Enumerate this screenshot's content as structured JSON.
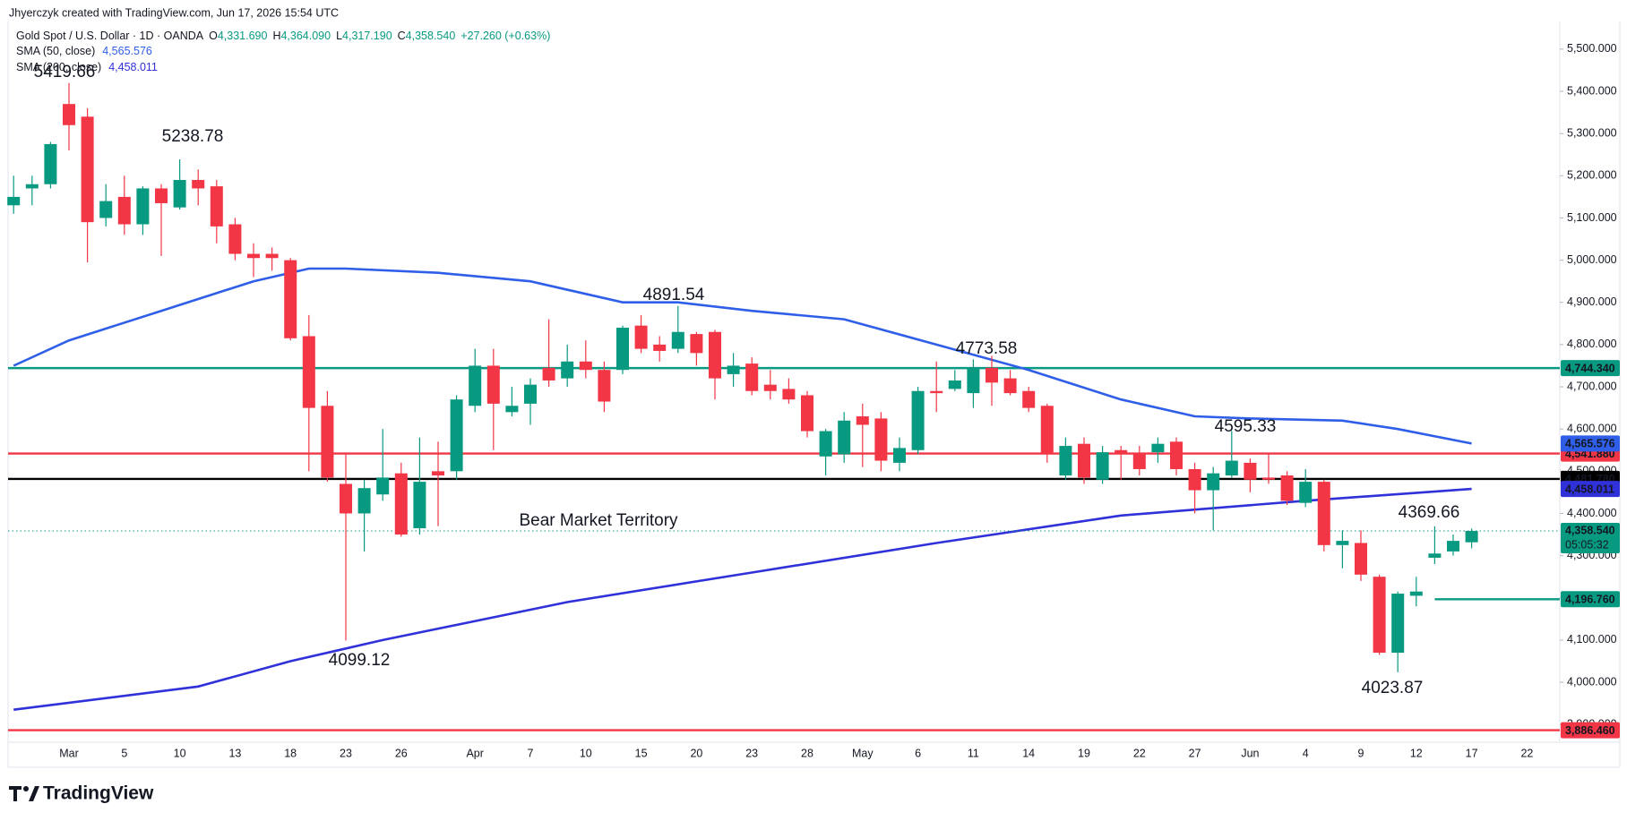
{
  "header": {
    "author": "Jhyerczyk created with TradingView.com, Jun 17, 2026 15:54 UTC",
    "symbol": "Gold Spot / U.S. Dollar · 1D · OANDA",
    "ohlc": [
      {
        "key": "O",
        "value": "4,331.690"
      },
      {
        "key": "H",
        "value": "4,364.090"
      },
      {
        "key": "L",
        "value": "4,317.190"
      },
      {
        "key": "C",
        "value": "4,358.540"
      }
    ],
    "change": "+27.260 (+0.63%)"
  },
  "logo": "TradingView",
  "chart_data": {
    "type": "candlestick",
    "categories": [
      null,
      null,
      null,
      "Mar",
      null,
      null,
      "5",
      null,
      null,
      "10",
      null,
      null,
      "13",
      null,
      null,
      "18",
      null,
      null,
      "23",
      null,
      null,
      "26",
      null,
      null,
      null,
      "Apr",
      null,
      null,
      "7",
      null,
      null,
      "10",
      null,
      null,
      "15",
      null,
      null,
      "20",
      null,
      null,
      "23",
      null,
      null,
      "28",
      null,
      null,
      "May",
      null,
      null,
      "6",
      null,
      null,
      "11",
      null,
      null,
      "14",
      null,
      null,
      "19",
      null,
      null,
      "22",
      null,
      null,
      "27",
      null,
      null,
      "Jun",
      null,
      null,
      "4",
      null,
      null,
      "9",
      null,
      null,
      "12",
      null,
      null,
      "17",
      null,
      null,
      "22"
    ],
    "open": [
      5130,
      5170,
      5180,
      5370,
      5340,
      5100,
      5150,
      5085,
      5170,
      5125,
      5190,
      5175,
      5085,
      5015,
      5015,
      5000,
      4820,
      4655,
      4470,
      4400,
      4445,
      4495,
      4365,
      4500,
      4500,
      4655,
      4750,
      4640,
      4660,
      4745,
      4720,
      4760,
      4740,
      4740,
      4845,
      4800,
      4790,
      4825,
      4830,
      4730,
      4755,
      4705,
      4695,
      4680,
      4535,
      4540,
      4630,
      4625,
      4520,
      4550,
      4690,
      4695,
      4685,
      4745,
      4720,
      4690,
      4655,
      4490,
      4565,
      4480,
      4550,
      4540,
      4545,
      4570,
      4505,
      4455,
      4490,
      4520,
      4485,
      4490,
      4425,
      4475,
      4325,
      4330,
      4250,
      4070,
      4205,
      4295,
      4310,
      4331.69,
      null,
      null,
      null
    ],
    "high": [
      5200,
      5200,
      5280,
      5419.66,
      5360,
      5180,
      5200,
      5175,
      5180,
      5238.78,
      5215,
      5190,
      5100,
      5040,
      5030,
      5005,
      4870,
      4690,
      4540,
      4480,
      4600,
      4520,
      4580,
      4570,
      4680,
      4790,
      4790,
      4700,
      4720,
      4860,
      4800,
      4810,
      4760,
      4845,
      4870,
      4820,
      4891.54,
      4830,
      4835,
      4780,
      4770,
      4740,
      4720,
      4690,
      4600,
      4640,
      4660,
      4640,
      4580,
      4700,
      4760,
      4740,
      4765,
      4773.58,
      4740,
      4700,
      4660,
      4580,
      4580,
      4560,
      4560,
      4560,
      4580,
      4580,
      4520,
      4510,
      4595.33,
      4530,
      4540,
      4500,
      4505,
      4480,
      4360,
      4360,
      4255,
      4215,
      4250,
      4369.66,
      4350,
      4364.09,
      null,
      null,
      null
    ],
    "low": [
      5110,
      5130,
      5170,
      5260,
      4995,
      5080,
      5060,
      5060,
      5010,
      5120,
      5130,
      5040,
      5000,
      4960,
      4975,
      4810,
      4500,
      4475,
      4099.12,
      4310,
      4430,
      4345,
      4350,
      4370,
      4480,
      4640,
      4550,
      4630,
      4610,
      4700,
      4700,
      4720,
      4640,
      4730,
      4780,
      4760,
      4780,
      4750,
      4670,
      4700,
      4680,
      4670,
      4660,
      4580,
      4490,
      4520,
      4510,
      4500,
      4500,
      4540,
      4640,
      4690,
      4650,
      4655,
      4680,
      4640,
      4520,
      4480,
      4470,
      4470,
      4480,
      4490,
      4520,
      4490,
      4400,
      4360,
      4485,
      4450,
      4470,
      4420,
      4415,
      4310,
      4270,
      4240,
      4065,
      4023.87,
      4180,
      4280,
      4300,
      4317.19,
      null,
      null,
      null
    ],
    "close": [
      5150,
      5180,
      5275,
      5320,
      5090,
      5140,
      5085,
      5170,
      5135,
      5190,
      5170,
      5080,
      5015,
      5005,
      5005,
      4815,
      4650,
      4485,
      4400,
      4460,
      4485,
      4350,
      4475,
      4490,
      4670,
      4750,
      4660,
      4655,
      4705,
      4715,
      4760,
      4740,
      4665,
      4840,
      4790,
      4785,
      4830,
      4780,
      4720,
      4750,
      4690,
      4690,
      4670,
      4595,
      4595,
      4620,
      4610,
      4525,
      4555,
      4690,
      4685,
      4715,
      4745,
      4710,
      4685,
      4650,
      4540,
      4560,
      4485,
      4545,
      4540,
      4505,
      4565,
      4505,
      4455,
      4495,
      4525,
      4480,
      4480,
      4430,
      4475,
      4325,
      4335,
      4255,
      4070,
      4210,
      4215,
      4305,
      4335,
      4358.54,
      null,
      null,
      null
    ],
    "up_color": "#089981",
    "down_color": "#f23645",
    "indicators": [
      {
        "name": "SMA (50, close)",
        "value_label": "4,565.576",
        "color": "#2f5fe8",
        "x": [
          0,
          3,
          8,
          13,
          16,
          18,
          23,
          28,
          33,
          36,
          40,
          45,
          50,
          55,
          60,
          64,
          67,
          72,
          75,
          79
        ],
        "values": [
          4750,
          4810,
          4880,
          4950,
          4980,
          4980,
          4970,
          4950,
          4900,
          4900,
          4880,
          4860,
          4800,
          4740,
          4670,
          4630,
          4625,
          4620,
          4600,
          4565.576
        ],
        "tag": {
          "value": 4565.576,
          "label": "4,565.576"
        }
      },
      {
        "name": "SMA (200, close)",
        "value_label": "4,458.011",
        "color": "#3131d9",
        "x": [
          0,
          10,
          15,
          20,
          30,
          40,
          50,
          60,
          70,
          79
        ],
        "values": [
          3935,
          3990,
          4050,
          4100,
          4190,
          4260,
          4330,
          4395,
          4430,
          4458.011
        ],
        "tag": {
          "value": 4458.011,
          "label": "4,458.011"
        }
      }
    ],
    "levels": [
      {
        "value": 4744.34,
        "label": "4,744.340",
        "color": "#089981"
      },
      {
        "value": 4541.88,
        "label": "4,541.880",
        "color": "#f23645"
      },
      {
        "value": 4481.78,
        "label": "4,481.780",
        "color": "#000000"
      },
      {
        "value": 4196.76,
        "label": "4,196.760",
        "color": "#089981"
      },
      {
        "value": 3886.46,
        "label": "3,886.460",
        "color": "#f23645"
      }
    ],
    "last_price": {
      "value": 4358.54,
      "label": "4,358.540",
      "countdown": "05:05:32"
    },
    "annotations": [
      "5419.66",
      "5238.78",
      "4891.54",
      "4773.58",
      "4595.33",
      "4369.66",
      "4099.12",
      "4023.87",
      "Bear Market Territory"
    ],
    "ylim": [
      3858,
      5557
    ],
    "yticks": [
      {
        "value": 3900,
        "label": "3,900.000"
      },
      {
        "value": 4000,
        "label": "4,000.000"
      },
      {
        "value": 4100,
        "label": "4,100.000"
      },
      {
        "value": 4200,
        "label": "4,200.000"
      },
      {
        "value": 4300,
        "label": "4,300.000"
      },
      {
        "value": 4400,
        "label": "4,400.000"
      },
      {
        "value": 4500,
        "label": "4,500.000"
      },
      {
        "value": 4600,
        "label": "4,600.000"
      },
      {
        "value": 4700,
        "label": "4,700.000"
      },
      {
        "value": 4800,
        "label": "4,800.000"
      },
      {
        "value": 4900,
        "label": "4,900.000"
      },
      {
        "value": 5000,
        "label": "5,000.000"
      },
      {
        "value": 5100,
        "label": "5,100.000"
      },
      {
        "value": 5200,
        "label": "5,200.000"
      },
      {
        "value": 5300,
        "label": "5,300.000"
      },
      {
        "value": 5400,
        "label": "5,400.000"
      },
      {
        "value": 5500,
        "label": "5,500.000"
      }
    ],
    "grid": false
  }
}
